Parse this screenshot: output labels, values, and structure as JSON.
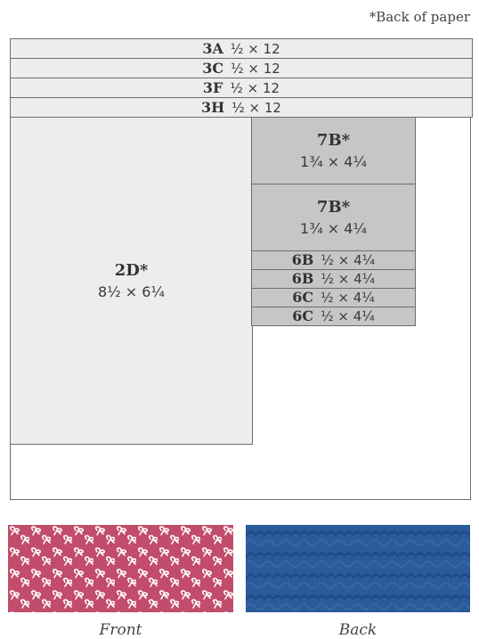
{
  "note": "*Back of paper",
  "strips": [
    {
      "code": "3A",
      "dim": "½ × 12"
    },
    {
      "code": "3C",
      "dim": "½ × 12"
    },
    {
      "code": "3F",
      "dim": "½ × 12"
    },
    {
      "code": "3H",
      "dim": "½ × 12"
    }
  ],
  "piece_2d": {
    "code": "2D*",
    "dim": "8½ × 6¼"
  },
  "piece_7b_1": {
    "code": "7B*",
    "dim": "1¾ × 4¼"
  },
  "piece_7b_2": {
    "code": "7B*",
    "dim": "1¾ × 4¼"
  },
  "small_pieces": [
    {
      "code": "6B",
      "dim": "½ × 4¼"
    },
    {
      "code": "6B",
      "dim": "½ × 4¼"
    },
    {
      "code": "6C",
      "dim": "½ × 4¼"
    },
    {
      "code": "6C",
      "dim": "½ × 4¼"
    }
  ],
  "captions": {
    "front": "Front",
    "back": "Back"
  },
  "colors": {
    "front": "#c24c6b",
    "back": "#2a5b9a",
    "border": "#6d6d6d"
  }
}
